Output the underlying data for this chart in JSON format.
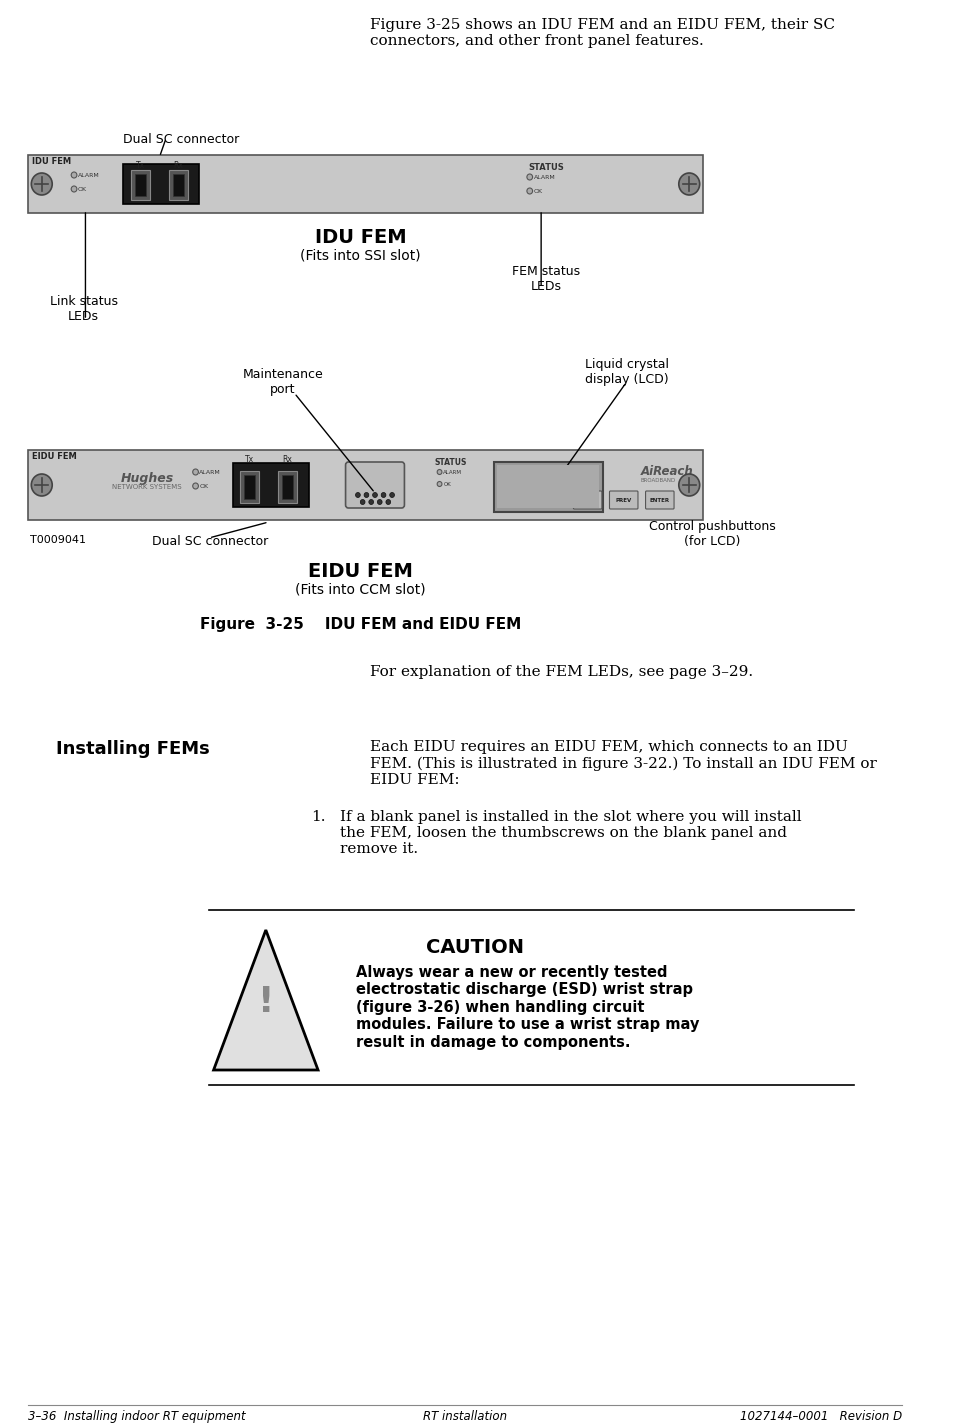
{
  "page_bg": "#ffffff",
  "text_color": "#000000",
  "header_text": "Figure 3-25 shows an IDU FEM and an EIDU FEM, their SC\nconnectors, and other front panel features.",
  "footer_left": "3–36  Installing indoor RT equipment",
  "footer_center": "RT installation",
  "footer_right": "1027144–0001   Revision D",
  "figure_title": "Figure  3-25    IDU FEM and EIDU FEM",
  "idu_label": "IDU FEM",
  "idu_sublabel": "(Fits into SSI slot)",
  "eidu_label": "EIDU FEM",
  "eidu_sublabel": "(Fits into CCM slot)",
  "dual_sc_top": "Dual SC connector",
  "dual_sc_bottom": "Dual SC connector",
  "link_status": "Link status\nLEDs",
  "fem_status": "FEM status\nLEDs",
  "maintenance_port": "Maintenance\nport",
  "lcd_label": "Liquid crystal\ndisplay (LCD)",
  "control_btns": "Control pushbuttons\n(for LCD)",
  "t_label": "T0009041",
  "panel_bg": "#c8c8c8",
  "panel_dark": "#a0a0a0",
  "connector_bg": "#404040",
  "installing_fems_title": "Installing FEMs",
  "para1": "Each EIDU requires an EIDU FEM, which connects to an IDU\nFEM. (This is illustrated in figure 3-22.) To install an IDU FEM or\nEIDU FEM:",
  "caution_title": "CAUTION",
  "caution_body": "Always wear a new or recently tested\nelectrostatic discharge (ESD) wrist strap\n(figure 3-26) when handling circuit\nmodules. Failure to use a wrist strap may\nresult in damage to components.",
  "fem_leds_text": "For explanation of the FEM LEDs, see page 3–29."
}
